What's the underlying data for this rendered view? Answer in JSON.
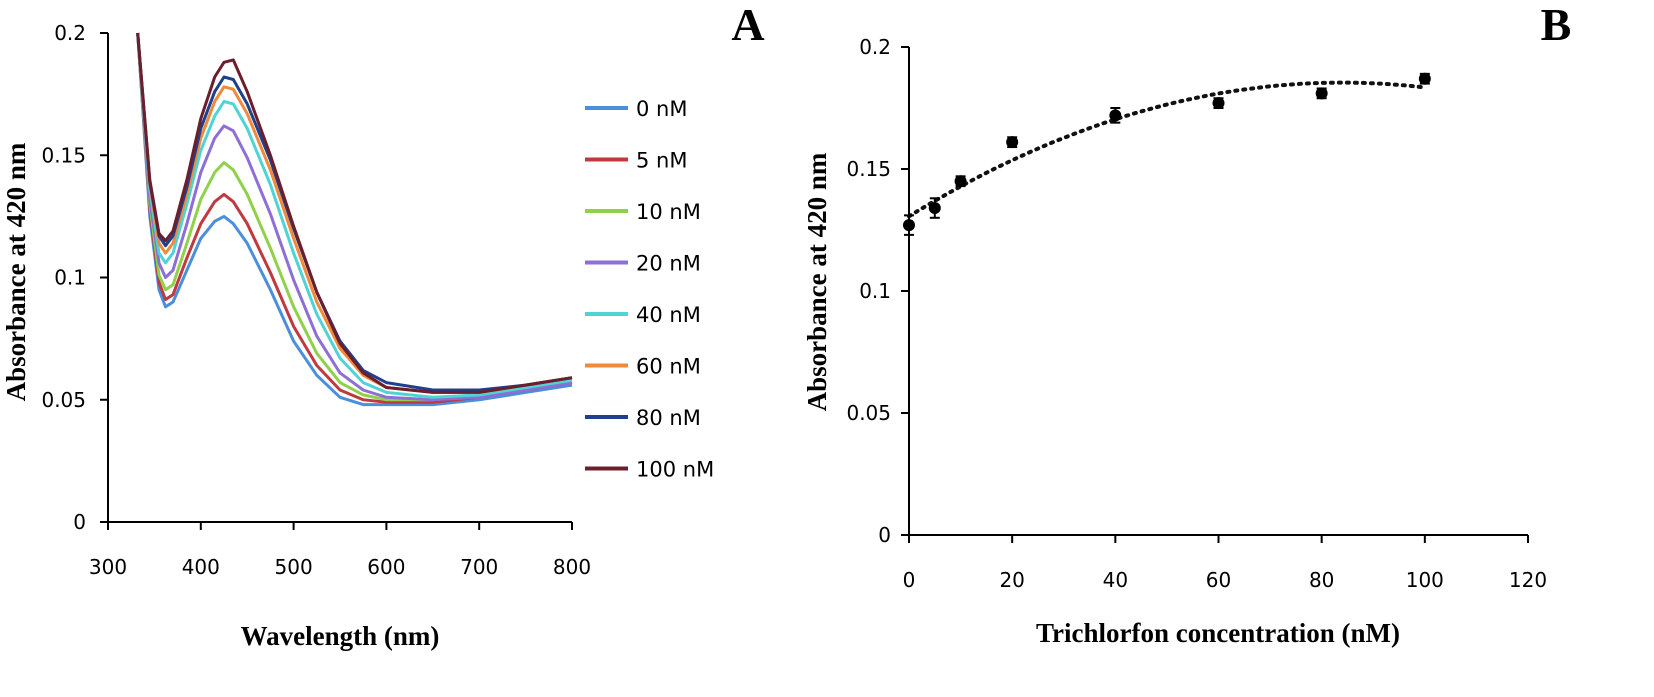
{
  "chart_data": [
    {
      "panel": "A",
      "type": "line",
      "xlabel": "Wavelength (nm)",
      "ylabel": "Absorbance at 420 nm",
      "xlim": [
        300,
        800
      ],
      "ylim": [
        0,
        0.2
      ],
      "x_ticks": [
        "300",
        "400",
        "500",
        "600",
        "700",
        "800"
      ],
      "y_ticks": [
        "0",
        "0.05",
        "0.1",
        "0.15",
        "0.2"
      ],
      "grid": false,
      "legend_position": "right",
      "x": [
        332,
        345,
        355,
        362,
        370,
        385,
        400,
        415,
        425,
        435,
        450,
        475,
        500,
        525,
        550,
        575,
        600,
        650,
        700,
        750,
        800
      ],
      "series": [
        {
          "name": "0 nM",
          "color": "#4a8fdc",
          "values": [
            0.2,
            0.125,
            0.095,
            0.088,
            0.09,
            0.103,
            0.116,
            0.123,
            0.125,
            0.122,
            0.114,
            0.095,
            0.074,
            0.06,
            0.051,
            0.048,
            0.048,
            0.048,
            0.05,
            0.053,
            0.056
          ]
        },
        {
          "name": "5 nM",
          "color": "#c0393f",
          "values": [
            0.2,
            0.128,
            0.098,
            0.091,
            0.093,
            0.108,
            0.122,
            0.131,
            0.134,
            0.131,
            0.122,
            0.102,
            0.08,
            0.064,
            0.054,
            0.05,
            0.049,
            0.049,
            0.051,
            0.054,
            0.057
          ]
        },
        {
          "name": "10 nM",
          "color": "#8fd14a",
          "values": [
            0.2,
            0.13,
            0.101,
            0.095,
            0.097,
            0.114,
            0.132,
            0.143,
            0.147,
            0.144,
            0.134,
            0.112,
            0.088,
            0.069,
            0.057,
            0.052,
            0.05,
            0.05,
            0.052,
            0.055,
            0.058
          ]
        },
        {
          "name": "20 nM",
          "color": "#8d6fd6",
          "values": [
            0.2,
            0.132,
            0.106,
            0.1,
            0.103,
            0.122,
            0.143,
            0.157,
            0.162,
            0.16,
            0.149,
            0.126,
            0.099,
            0.076,
            0.061,
            0.054,
            0.051,
            0.05,
            0.051,
            0.054,
            0.057
          ]
        },
        {
          "name": "40 nM",
          "color": "#4fd4d6",
          "values": [
            0.2,
            0.136,
            0.11,
            0.106,
            0.11,
            0.13,
            0.152,
            0.166,
            0.172,
            0.171,
            0.161,
            0.138,
            0.11,
            0.085,
            0.067,
            0.057,
            0.053,
            0.051,
            0.052,
            0.055,
            0.058
          ]
        },
        {
          "name": "60 nM",
          "color": "#f08a3a",
          "values": [
            0.2,
            0.138,
            0.114,
            0.11,
            0.114,
            0.134,
            0.157,
            0.172,
            0.178,
            0.177,
            0.167,
            0.144,
            0.116,
            0.09,
            0.071,
            0.06,
            0.055,
            0.053,
            0.053,
            0.056,
            0.059
          ]
        },
        {
          "name": "80 nM",
          "color": "#1f3f8f",
          "values": [
            0.2,
            0.139,
            0.117,
            0.113,
            0.117,
            0.137,
            0.161,
            0.176,
            0.182,
            0.181,
            0.171,
            0.148,
            0.12,
            0.094,
            0.074,
            0.062,
            0.057,
            0.054,
            0.054,
            0.056,
            0.059
          ]
        },
        {
          "name": "100 nM",
          "color": "#6b1f2c",
          "values": [
            0.2,
            0.14,
            0.118,
            0.115,
            0.119,
            0.14,
            0.165,
            0.182,
            0.188,
            0.189,
            0.176,
            0.15,
            0.121,
            0.094,
            0.073,
            0.061,
            0.055,
            0.053,
            0.053,
            0.056,
            0.059
          ]
        }
      ]
    },
    {
      "panel": "B",
      "type": "scatter",
      "xlabel": "Trichlorfon concentration (nM)",
      "ylabel": "Absorbance at 420 nm",
      "xlim": [
        0,
        120
      ],
      "ylim": [
        0,
        0.2
      ],
      "x_ticks": [
        "0",
        "20",
        "40",
        "60",
        "80",
        "100",
        "120"
      ],
      "y_ticks": [
        "0",
        "0.05",
        "0.1",
        "0.15",
        "0.2"
      ],
      "grid": false,
      "trendline": "polynomial, dotted",
      "x": [
        0,
        5,
        10,
        20,
        40,
        60,
        80,
        100
      ],
      "y": [
        0.127,
        0.134,
        0.145,
        0.161,
        0.172,
        0.177,
        0.181,
        0.187
      ],
      "error": [
        0.004,
        0.004,
        0.002,
        0.002,
        0.003,
        0.002,
        0.002,
        0.002
      ]
    }
  ],
  "panel_letters": {
    "a": "A",
    "b": "B"
  }
}
